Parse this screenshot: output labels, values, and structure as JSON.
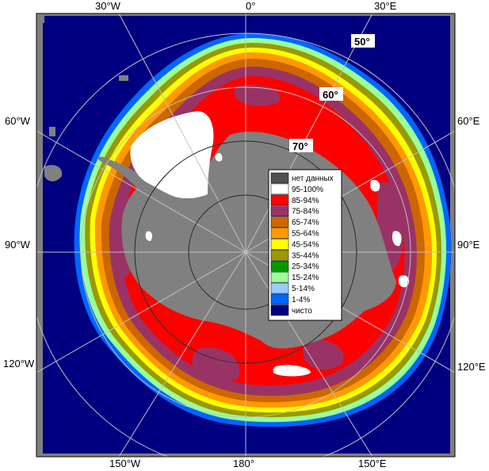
{
  "map": {
    "longitude_labels": {
      "top": [
        "30°W",
        "0°",
        "30°E"
      ],
      "left": [
        "60°W",
        "90°W",
        "120°W"
      ],
      "right": [
        "60°E",
        "90°E",
        "120°E"
      ],
      "bottom": [
        "150°W",
        "180°",
        "150°E"
      ]
    },
    "latitude_labels": [
      "50°",
      "60°",
      "70°"
    ],
    "colors": {
      "ocean": "#000080",
      "land": "#808080",
      "no_data": "#505050",
      "ice_95_100": "#ffffff",
      "ice_85_94": "#ff0000",
      "ice_75_84": "#993366",
      "ice_65_74": "#cc6600",
      "ice_55_64": "#ff9900",
      "ice_45_54": "#ffff00",
      "ice_35_44": "#999900",
      "ice_25_34": "#009900",
      "ice_15_24": "#99ff99",
      "ice_5_14": "#99ccff",
      "ice_1_4": "#0066ff",
      "clear": "#000080",
      "graticule": "#c0c0c0"
    }
  },
  "legend": {
    "items": [
      {
        "label": "нет данных",
        "color": "#505050"
      },
      {
        "label": "95-100%",
        "color": "#ffffff"
      },
      {
        "label": "85-94%",
        "color": "#ff0000"
      },
      {
        "label": "75-84%",
        "color": "#993366"
      },
      {
        "label": "65-74%",
        "color": "#cc6600"
      },
      {
        "label": "55-64%",
        "color": "#ff9900"
      },
      {
        "label": "45-54%",
        "color": "#ffff00"
      },
      {
        "label": "35-44%",
        "color": "#999900"
      },
      {
        "label": "25-34%",
        "color": "#009900"
      },
      {
        "label": "15-24%",
        "color": "#99ff99"
      },
      {
        "label": "5-14%",
        "color": "#99ccff"
      },
      {
        "label": "1-4%",
        "color": "#0066ff"
      },
      {
        "label": "чисто",
        "color": "#000080"
      }
    ]
  }
}
